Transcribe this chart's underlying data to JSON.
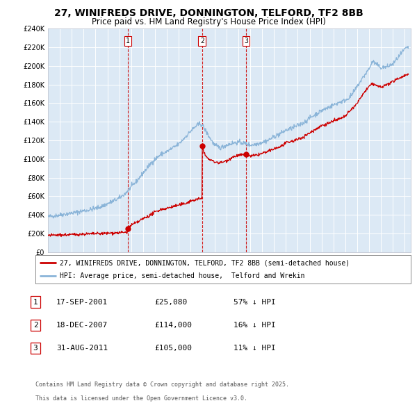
{
  "title": "27, WINIFREDS DRIVE, DONNINGTON, TELFORD, TF2 8BB",
  "subtitle": "Price paid vs. HM Land Registry's House Price Index (HPI)",
  "title_fontsize": 10,
  "subtitle_fontsize": 8.5,
  "plot_bg_color": "#dce9f5",
  "hpi_color": "#8ab4d8",
  "price_color": "#cc0000",
  "ylim": [
    0,
    240000
  ],
  "ytick_step": 20000,
  "sale1": {
    "date_num": 2001.72,
    "price": 25080,
    "label": "1"
  },
  "sale2": {
    "date_num": 2007.96,
    "price": 114000,
    "label": "2"
  },
  "sale3": {
    "date_num": 2011.66,
    "price": 105000,
    "label": "3"
  },
  "legend_label_price": "27, WINIFREDS DRIVE, DONNINGTON, TELFORD, TF2 8BB (semi-detached house)",
  "legend_label_hpi": "HPI: Average price, semi-detached house,  Telford and Wrekin",
  "footer1": "Contains HM Land Registry data © Crown copyright and database right 2025.",
  "footer2": "This data is licensed under the Open Government Licence v3.0.",
  "table_rows": [
    {
      "num": "1",
      "date": "17-SEP-2001",
      "price": "£25,080",
      "note": "57% ↓ HPI"
    },
    {
      "num": "2",
      "date": "18-DEC-2007",
      "price": "£114,000",
      "note": "16% ↓ HPI"
    },
    {
      "num": "3",
      "date": "31-AUG-2011",
      "price": "£105,000",
      "note": "11% ↓ HPI"
    }
  ]
}
